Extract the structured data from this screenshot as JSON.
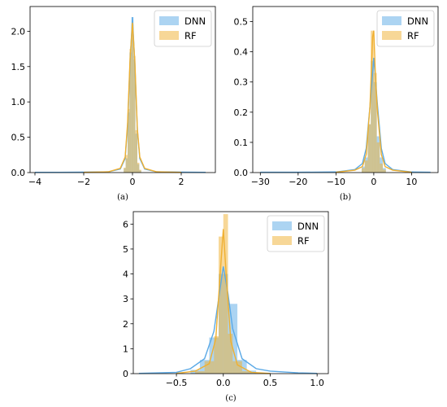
{
  "chart_data": [
    {
      "id": "a",
      "type": "histogram",
      "caption": "(a)",
      "xlim": [
        -4.2,
        3.4
      ],
      "ylim": [
        0,
        2.35
      ],
      "xticks": [
        -4,
        -2,
        0,
        2
      ],
      "yticks": [
        0.0,
        0.5,
        1.0,
        1.5,
        2.0
      ],
      "xtick_labels": [
        "−4",
        "−2",
        "0",
        "2"
      ],
      "ytick_labels": [
        "0.0",
        "0.5",
        "1.0",
        "1.5",
        "2.0"
      ],
      "legend": "top-right",
      "series": [
        {
          "name": "DNN",
          "color": "#5aa9e6",
          "bins": [
            [
              -0.36,
              -0.28,
              0.06
            ],
            [
              -0.28,
              -0.2,
              0.2
            ],
            [
              -0.2,
              -0.12,
              0.85
            ],
            [
              -0.12,
              -0.04,
              1.7
            ],
            [
              -0.04,
              0.04,
              2.2
            ],
            [
              0.04,
              0.12,
              1.6
            ],
            [
              0.12,
              0.2,
              0.55
            ],
            [
              0.2,
              0.28,
              0.12
            ],
            [
              0.28,
              0.36,
              0.03
            ]
          ],
          "kde": [
            [
              -4,
              0.003
            ],
            [
              -3,
              0.004
            ],
            [
              -2,
              0.006
            ],
            [
              -1,
              0.01
            ],
            [
              -0.5,
              0.05
            ],
            [
              -0.3,
              0.2
            ],
            [
              -0.2,
              0.65
            ],
            [
              -0.1,
              1.55
            ],
            [
              0,
              2.2
            ],
            [
              0.1,
              1.5
            ],
            [
              0.2,
              0.6
            ],
            [
              0.3,
              0.2
            ],
            [
              0.5,
              0.05
            ],
            [
              1,
              0.01
            ],
            [
              2,
              0.006
            ],
            [
              3,
              0.004
            ]
          ]
        },
        {
          "name": "RF",
          "color": "#f0b030",
          "bins": [
            [
              -0.36,
              -0.28,
              0.07
            ],
            [
              -0.28,
              -0.2,
              0.25
            ],
            [
              -0.2,
              -0.12,
              0.9
            ],
            [
              -0.12,
              -0.04,
              1.75
            ],
            [
              -0.04,
              0.04,
              2.1
            ],
            [
              0.04,
              0.12,
              1.65
            ],
            [
              0.12,
              0.2,
              0.6
            ],
            [
              0.2,
              0.28,
              0.14
            ],
            [
              0.28,
              0.36,
              0.04
            ]
          ],
          "kde": [
            [
              -2,
              0.004
            ],
            [
              -1,
              0.01
            ],
            [
              -0.5,
              0.06
            ],
            [
              -0.3,
              0.22
            ],
            [
              -0.2,
              0.7
            ],
            [
              -0.1,
              1.6
            ],
            [
              0,
              2.12
            ],
            [
              0.1,
              1.55
            ],
            [
              0.2,
              0.62
            ],
            [
              0.3,
              0.22
            ],
            [
              0.5,
              0.06
            ],
            [
              1,
              0.01
            ],
            [
              2,
              0.004
            ]
          ]
        }
      ]
    },
    {
      "id": "b",
      "type": "histogram",
      "caption": "(b)",
      "xlim": [
        -32,
        17
      ],
      "ylim": [
        0,
        0.55
      ],
      "xticks": [
        -30,
        -20,
        -10,
        0,
        10
      ],
      "yticks": [
        0.0,
        0.1,
        0.2,
        0.3,
        0.4,
        0.5
      ],
      "xtick_labels": [
        "−30",
        "−20",
        "−10",
        "0",
        "10"
      ],
      "ytick_labels": [
        "0.0",
        "0.1",
        "0.2",
        "0.3",
        "0.4",
        "0.5"
      ],
      "legend": "top-right",
      "series": [
        {
          "name": "DNN",
          "color": "#5aa9e6",
          "bins": [
            [
              -3.2,
              -2.4,
              0.02
            ],
            [
              -2.4,
              -1.6,
              0.05
            ],
            [
              -1.6,
              -0.8,
              0.16
            ],
            [
              -0.8,
              0,
              0.37
            ],
            [
              0,
              0.8,
              0.3
            ],
            [
              0.8,
              1.6,
              0.12
            ],
            [
              1.6,
              2.4,
              0.05
            ],
            [
              2.4,
              3.2,
              0.015
            ]
          ],
          "kde": [
            [
              -30,
              0.001
            ],
            [
              -20,
              0.001
            ],
            [
              -10,
              0.002
            ],
            [
              -5,
              0.01
            ],
            [
              -3,
              0.03
            ],
            [
              -2,
              0.08
            ],
            [
              -1,
              0.22
            ],
            [
              0,
              0.38
            ],
            [
              1,
              0.22
            ],
            [
              2,
              0.08
            ],
            [
              3,
              0.03
            ],
            [
              5,
              0.01
            ],
            [
              10,
              0.002
            ],
            [
              15,
              0.001
            ]
          ]
        },
        {
          "name": "RF",
          "color": "#f0b030",
          "bins": [
            [
              -3.2,
              -2.4,
              0.015
            ],
            [
              -2.4,
              -1.6,
              0.04
            ],
            [
              -1.6,
              -0.8,
              0.16
            ],
            [
              -0.8,
              0,
              0.47
            ],
            [
              0,
              0.8,
              0.33
            ],
            [
              0.8,
              1.6,
              0.1
            ],
            [
              1.6,
              2.4,
              0.03
            ],
            [
              2.4,
              3.2,
              0.01
            ]
          ],
          "kde": [
            [
              -10,
              0.001
            ],
            [
              -5,
              0.008
            ],
            [
              -3,
              0.02
            ],
            [
              -2,
              0.06
            ],
            [
              -1,
              0.22
            ],
            [
              -0.3,
              0.45
            ],
            [
              0,
              0.47
            ],
            [
              0.5,
              0.3
            ],
            [
              1,
              0.2
            ],
            [
              2,
              0.06
            ],
            [
              3,
              0.02
            ],
            [
              5,
              0.008
            ],
            [
              10,
              0.001
            ]
          ]
        }
      ]
    },
    {
      "id": "c",
      "type": "histogram",
      "caption": "(c)",
      "xlim": [
        -0.96,
        1.12
      ],
      "ylim": [
        0,
        6.5
      ],
      "xticks": [
        -0.5,
        0.0,
        0.5,
        1.0
      ],
      "yticks": [
        0,
        1,
        2,
        3,
        4,
        5,
        6
      ],
      "xtick_labels": [
        "−0.5",
        "0.0",
        "0.5",
        "1.0"
      ],
      "ytick_labels": [
        "0",
        "1",
        "2",
        "3",
        "4",
        "5",
        "6"
      ],
      "legend": "top-right",
      "series": [
        {
          "name": "DNN",
          "color": "#5aa9e6",
          "bins": [
            [
              -0.35,
              -0.25,
              0.15
            ],
            [
              -0.25,
              -0.15,
              0.55
            ],
            [
              -0.15,
              -0.05,
              1.45
            ],
            [
              -0.05,
              0.05,
              4.0
            ],
            [
              0.05,
              0.15,
              2.8
            ],
            [
              0.15,
              0.25,
              0.55
            ],
            [
              0.25,
              0.35,
              0.12
            ]
          ],
          "kde": [
            [
              -0.9,
              0.01
            ],
            [
              -0.5,
              0.05
            ],
            [
              -0.35,
              0.2
            ],
            [
              -0.2,
              0.6
            ],
            [
              -0.1,
              1.7
            ],
            [
              0,
              4.3
            ],
            [
              0.05,
              3.2
            ],
            [
              0.1,
              1.8
            ],
            [
              0.2,
              0.6
            ],
            [
              0.35,
              0.2
            ],
            [
              0.5,
              0.1
            ],
            [
              0.8,
              0.03
            ],
            [
              1.0,
              0.01
            ]
          ]
        },
        {
          "name": "RF",
          "color": "#f0b030",
          "bins": [
            [
              -0.3,
              -0.2,
              0.1
            ],
            [
              -0.2,
              -0.1,
              0.5
            ],
            [
              -0.1,
              -0.05,
              1.5
            ],
            [
              -0.05,
              0,
              5.5
            ],
            [
              0,
              0.05,
              6.4
            ],
            [
              0.05,
              0.1,
              1.6
            ],
            [
              0.1,
              0.2,
              0.5
            ],
            [
              0.2,
              0.3,
              0.1
            ]
          ],
          "kde": [
            [
              -0.5,
              0.01
            ],
            [
              -0.3,
              0.1
            ],
            [
              -0.15,
              0.4
            ],
            [
              -0.08,
              1.4
            ],
            [
              -0.03,
              4.2
            ],
            [
              0,
              5.8
            ],
            [
              0.03,
              4.0
            ],
            [
              0.08,
              1.3
            ],
            [
              0.15,
              0.35
            ],
            [
              0.3,
              0.05
            ],
            [
              0.5,
              0.005
            ]
          ]
        }
      ]
    }
  ]
}
